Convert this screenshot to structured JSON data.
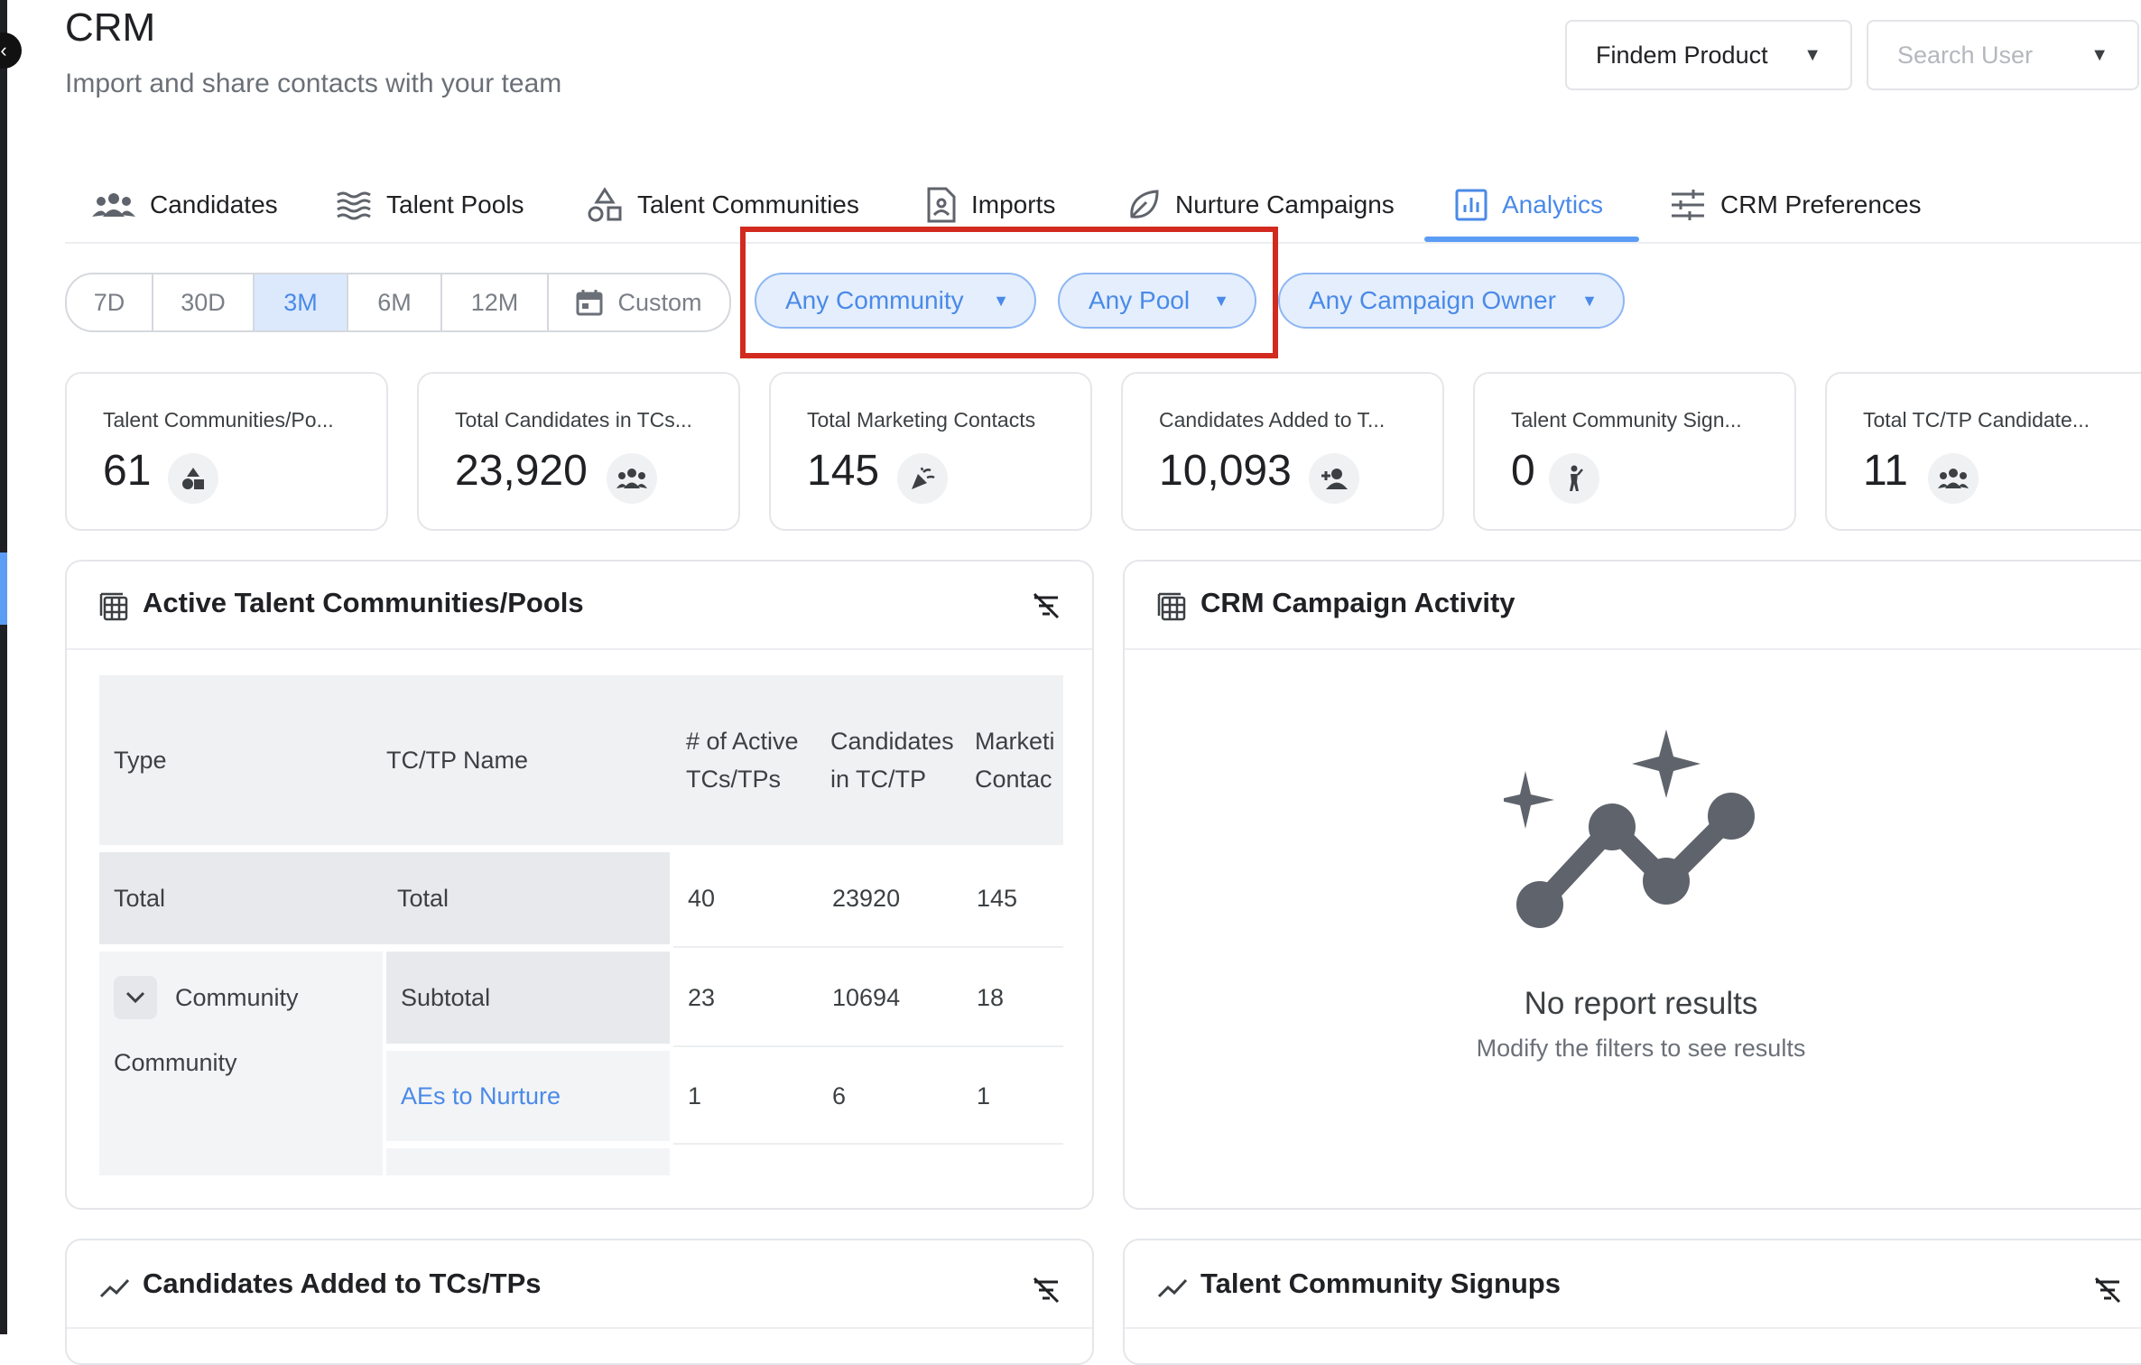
{
  "header": {
    "title": "CRM",
    "subtitle": "Import and share contacts with your team",
    "product_select": "Findem Product",
    "user_select_placeholder": "Search User"
  },
  "tabs": [
    {
      "label": "Candidates",
      "icon": "people-icon"
    },
    {
      "label": "Talent Pools",
      "icon": "waves-icon"
    },
    {
      "label": "Talent Communities",
      "icon": "shapes-icon"
    },
    {
      "label": "Imports",
      "icon": "document-icon"
    },
    {
      "label": "Nurture Campaigns",
      "icon": "leaf-icon"
    },
    {
      "label": "Analytics",
      "icon": "bar-chart-icon",
      "active": true
    },
    {
      "label": "CRM Preferences",
      "icon": "sliders-icon"
    }
  ],
  "range": {
    "options": [
      "7D",
      "30D",
      "3M",
      "6M",
      "12M",
      "Custom"
    ],
    "selected": "3M"
  },
  "filters": {
    "community": "Any Community",
    "pool": "Any Pool",
    "campaign_owner": "Any Campaign Owner"
  },
  "stats": [
    {
      "label": "Talent Communities/Po...",
      "value": "61",
      "icon": "shapes-icon"
    },
    {
      "label": "Total Candidates in TCs...",
      "value": "23,920",
      "icon": "people-icon"
    },
    {
      "label": "Total Marketing Contacts",
      "value": "145",
      "icon": "party-popper-icon"
    },
    {
      "label": "Candidates Added to T...",
      "value": "10,093",
      "icon": "person-add-icon"
    },
    {
      "label": "Talent Community Sign...",
      "value": "0",
      "icon": "person-wave-icon"
    },
    {
      "label": "Total TC/TP Candidate...",
      "value": "11",
      "icon": "people-icon"
    }
  ],
  "active_panel": {
    "title": "Active Talent Communities/Pools",
    "columns": [
      "Type",
      "TC/TP Name",
      "# of Active TCs/TPs",
      "Candidates in TC/TP",
      "Marketi Contac"
    ],
    "rows": [
      {
        "type": "Total",
        "name": "Total",
        "active": "40",
        "candidates": "23920",
        "marketing": "145"
      },
      {
        "type": "Community",
        "name": "Subtotal",
        "active": "23",
        "candidates": "10694",
        "marketing": "18"
      },
      {
        "type": "Community",
        "name": "AEs to Nurture",
        "active": "1",
        "candidates": "6",
        "marketing": "1"
      }
    ]
  },
  "campaign_panel": {
    "title": "CRM Campaign Activity",
    "empty_title": "No report results",
    "empty_subtitle": "Modify the filters to see results"
  },
  "bottom_panels": {
    "left_title": "Candidates Added to TCs/TPs",
    "right_title": "Talent Community Signups"
  },
  "colors": {
    "accent": "#4a8ae8",
    "highlight": "#d32a20",
    "empty_icon": "#5f636b"
  }
}
